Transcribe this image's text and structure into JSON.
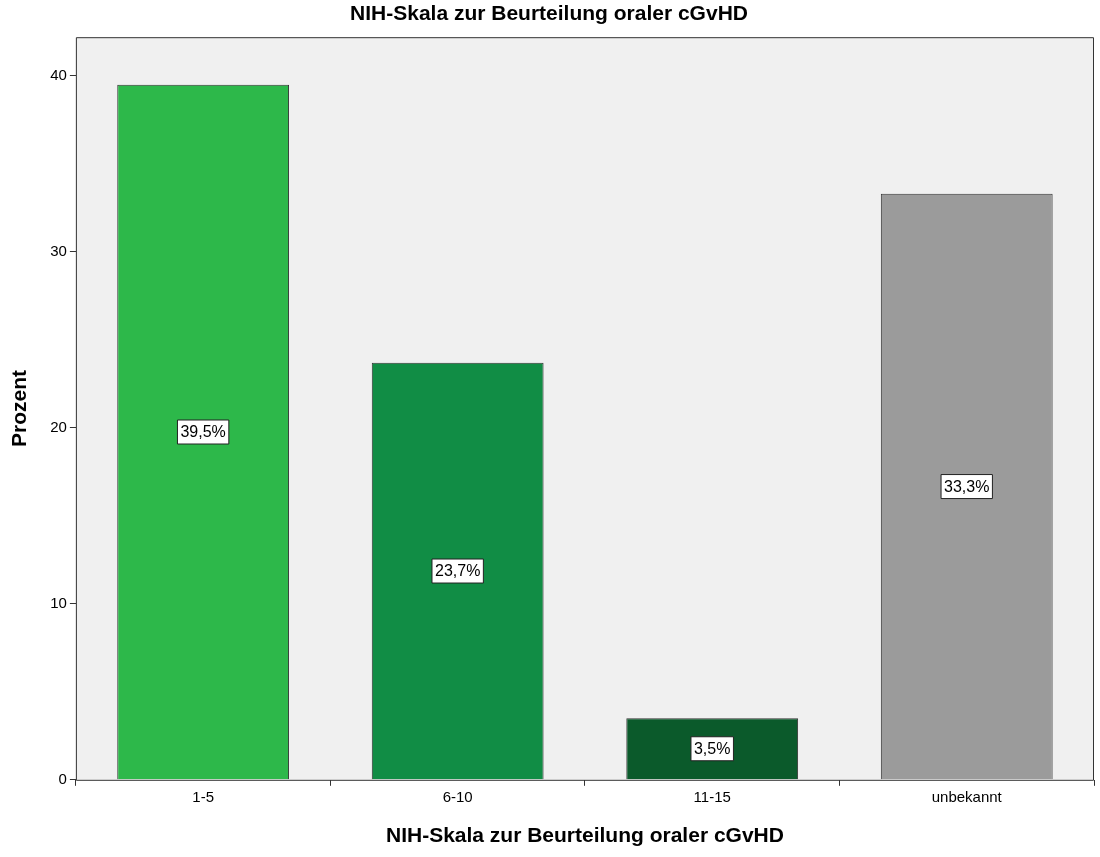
{
  "chart_data": {
    "type": "bar",
    "title": "NIH-Skala zur Beurteilung oraler cGvHD",
    "xlabel": "NIH-Skala zur Beurteilung oraler cGvHD",
    "ylabel": "Prozent",
    "categories": [
      "1-5",
      "6-10",
      "11-15",
      "unbekannt"
    ],
    "values": [
      39.5,
      23.7,
      3.5,
      33.3
    ],
    "colors": [
      "#2db84a",
      "#118d45",
      "#0b5a2b",
      "#9b9b9b"
    ],
    "value_labels": [
      "39,5%",
      "23,7%",
      "3,5%",
      "33,3%"
    ],
    "ylim": [
      0,
      42.2
    ],
    "yticks": [
      0,
      10,
      20,
      30,
      40
    ],
    "grid": false,
    "legend": false
  }
}
